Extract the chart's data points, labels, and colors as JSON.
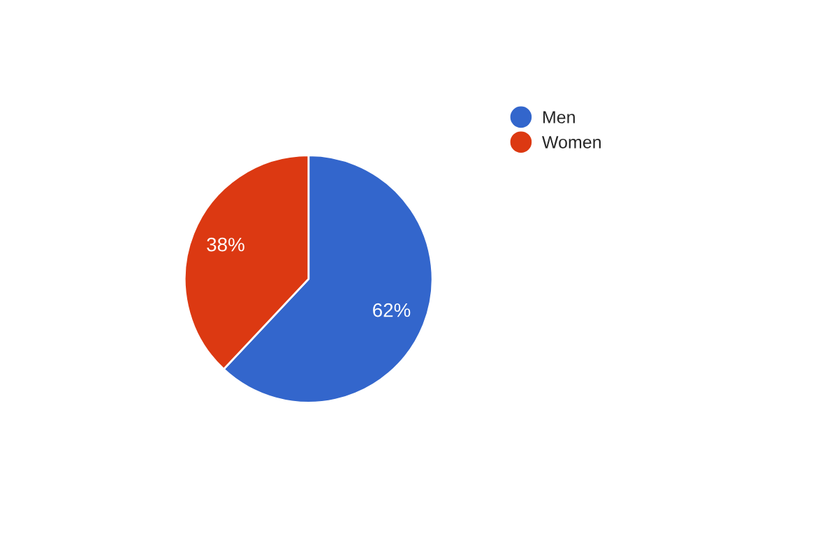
{
  "chart_data": {
    "type": "pie",
    "categories": [
      "Men",
      "Women"
    ],
    "values": [
      62,
      38
    ],
    "colors": [
      "#3366cc",
      "#dc3912"
    ],
    "value_labels": [
      "62%",
      "38%"
    ],
    "legend": "top right"
  }
}
